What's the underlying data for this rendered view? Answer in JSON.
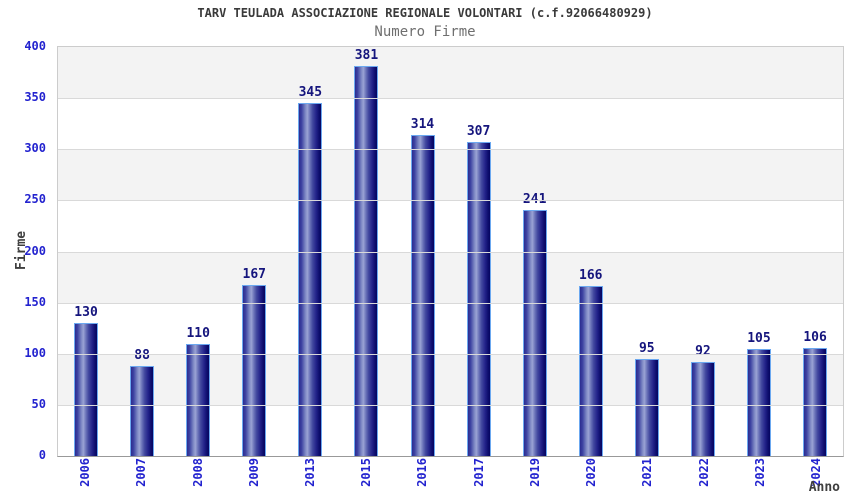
{
  "header": {
    "title": "TARV TEULADA ASSOCIAZIONE REGIONALE VOLONTARI (c.f.92066480929)",
    "subtitle": "Numero Firme"
  },
  "chart_data": {
    "type": "bar",
    "title": "TARV TEULADA ASSOCIAZIONE REGIONALE VOLONTARI (c.f.92066480929)",
    "subtitle": "Numero Firme",
    "categories": [
      "2006",
      "2007",
      "2008",
      "2009",
      "2013",
      "2015",
      "2016",
      "2017",
      "2019",
      "2020",
      "2021",
      "2022",
      "2023",
      "2024"
    ],
    "values": [
      130,
      88,
      110,
      167,
      345,
      381,
      314,
      307,
      241,
      166,
      95,
      92,
      105,
      106
    ],
    "xlabel": "Anno",
    "ylabel": "Firme",
    "ylim": [
      0,
      400
    ],
    "ytick_step": 50,
    "yticks": [
      0,
      50,
      100,
      150,
      200,
      250,
      300,
      350,
      400
    ],
    "grid": true,
    "legend": "none",
    "band_colors": [
      "#f3f3f3",
      "#ffffff"
    ],
    "gridline_color": "#d9d9d9",
    "bar_dark_color": "#1b1b80",
    "bar_highlight_color": "#9aa3d4",
    "bar_border_color": "#6ba8f0",
    "value_label_color": "#15157d",
    "axis_tick_color": "#2323cf",
    "title_color": "#3a3a3a",
    "subtitle_color": "#6f6f6f"
  }
}
